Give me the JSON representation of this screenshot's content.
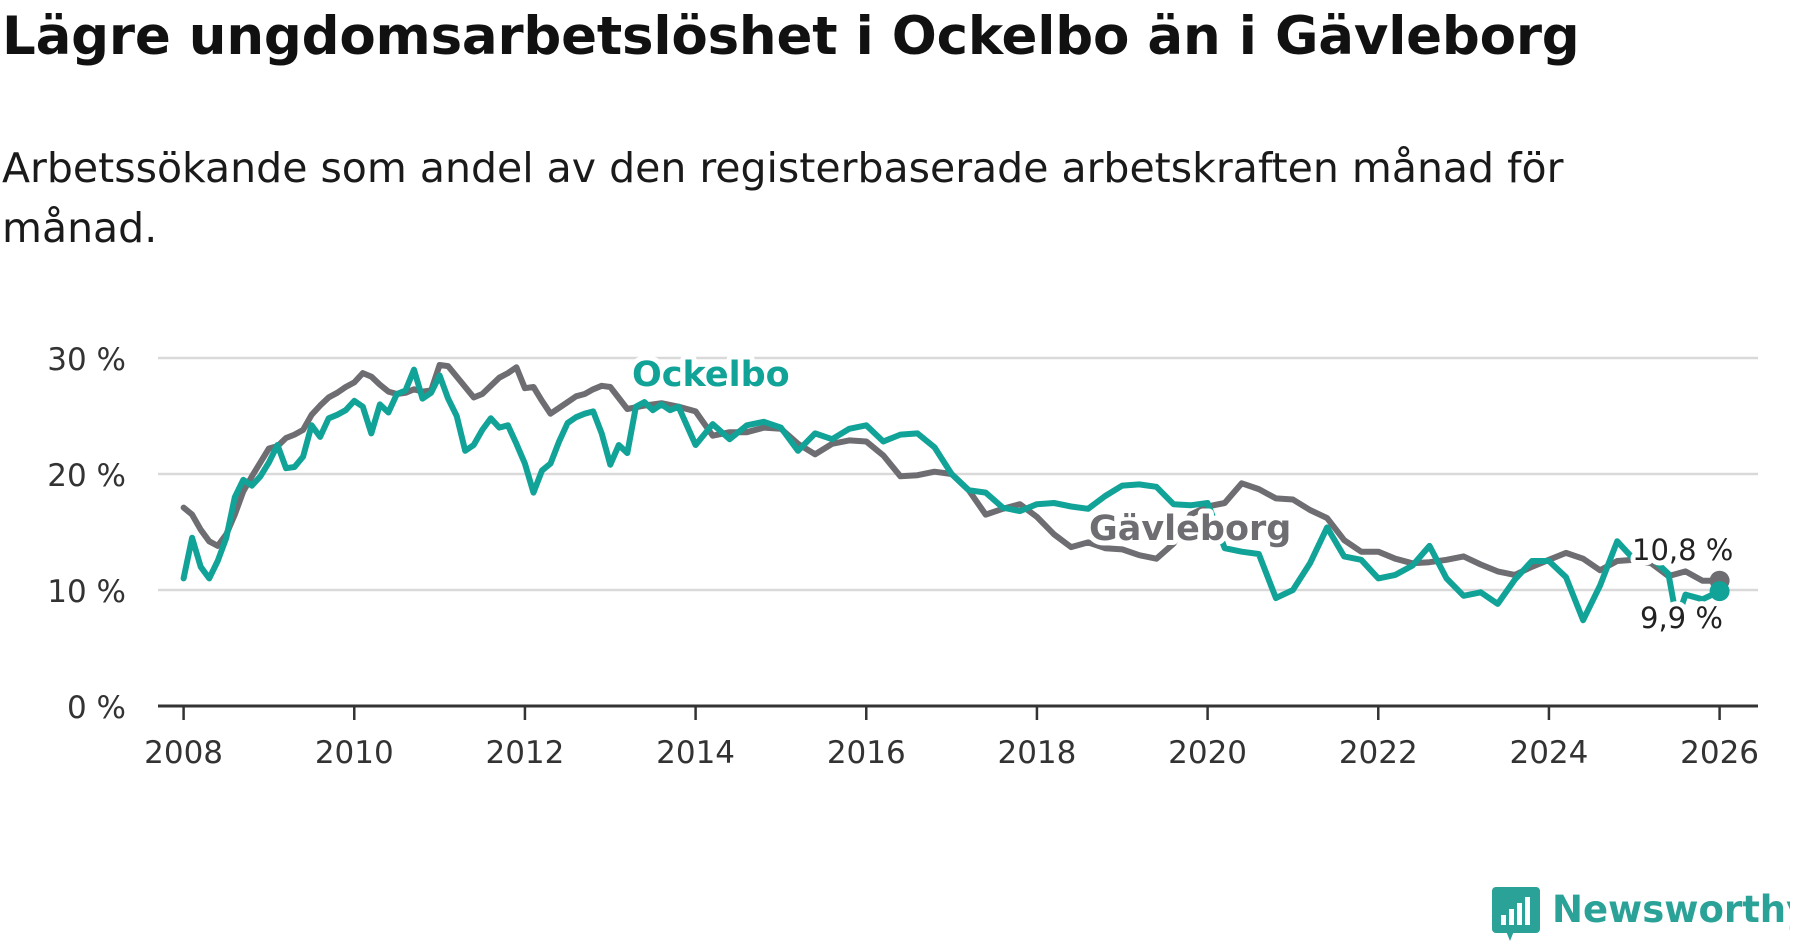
{
  "title": "Lägre ungdomsarbetslöshet i Ockelbo än i Gävleborg",
  "subtitle": "Arbetssökande som andel av den registerbaserade arbetskraften månad för månad.",
  "brand": {
    "name": "Newsworthy",
    "color": "#2aa298"
  },
  "colors": {
    "ockelbo": "#12a398",
    "gavleborg": "#6e6d71",
    "grid": "#d9d9d9",
    "axis": "#333333"
  },
  "chart_data": {
    "type": "line",
    "title": "Lägre ungdomsarbetslöshet i Ockelbo än i Gävleborg",
    "xlabel": "",
    "ylabel": "",
    "xlim": [
      2007.7,
      2026.45
    ],
    "ylim": [
      0,
      30
    ],
    "y_ticks": [
      0,
      10,
      20,
      30
    ],
    "y_tick_labels": [
      "0 %",
      "10 %",
      "20 %",
      "30 %"
    ],
    "x_ticks": [
      2008,
      2010,
      2012,
      2014,
      2016,
      2018,
      2020,
      2022,
      2024,
      2026
    ],
    "x_tick_labels": [
      "2008",
      "2010",
      "2012",
      "2014",
      "2016",
      "2018",
      "2020",
      "2022",
      "2024",
      "2026"
    ],
    "series": [
      {
        "name": "Gävleborg",
        "label": "Gävleborg",
        "end_label": "10,8 %",
        "x": [
          2008.0,
          2008.1,
          2008.2,
          2008.3,
          2008.4,
          2008.5,
          2008.6,
          2008.7,
          2008.8,
          2008.9,
          2009.0,
          2009.1,
          2009.2,
          2009.3,
          2009.4,
          2009.5,
          2009.6,
          2009.7,
          2009.8,
          2009.9,
          2010.0,
          2010.1,
          2010.2,
          2010.3,
          2010.4,
          2010.5,
          2010.6,
          2010.7,
          2010.8,
          2010.9,
          2011.0,
          2011.1,
          2011.2,
          2011.3,
          2011.4,
          2011.5,
          2011.6,
          2011.7,
          2011.8,
          2011.9,
          2012.0,
          2012.1,
          2012.2,
          2012.3,
          2012.4,
          2012.5,
          2012.6,
          2012.7,
          2012.8,
          2012.9,
          2013.0,
          2013.2,
          2013.4,
          2013.6,
          2013.8,
          2014.0,
          2014.2,
          2014.4,
          2014.6,
          2014.8,
          2015.0,
          2015.2,
          2015.4,
          2015.6,
          2015.8,
          2016.0,
          2016.2,
          2016.4,
          2016.6,
          2016.8,
          2017.0,
          2017.2,
          2017.4,
          2017.6,
          2017.8,
          2018.0,
          2018.2,
          2018.4,
          2018.6,
          2018.8,
          2019.0,
          2019.2,
          2019.4,
          2019.6,
          2019.8,
          2020.0,
          2020.2,
          2020.4,
          2020.6,
          2020.8,
          2021.0,
          2021.2,
          2021.4,
          2021.6,
          2021.8,
          2022.0,
          2022.2,
          2022.4,
          2022.6,
          2022.8,
          2023.0,
          2023.2,
          2023.4,
          2023.6,
          2023.8,
          2024.0,
          2024.2,
          2024.4,
          2024.6,
          2024.8,
          2025.0,
          2025.2,
          2025.4,
          2025.6,
          2025.8,
          2026.0
        ],
        "values": [
          17.1,
          16.5,
          15.2,
          14.2,
          13.8,
          14.8,
          16.5,
          18.5,
          19.8,
          21.0,
          22.2,
          22.4,
          23.1,
          23.4,
          23.8,
          25.1,
          25.9,
          26.6,
          27.0,
          27.5,
          27.9,
          28.7,
          28.4,
          27.7,
          27.1,
          26.9,
          27.0,
          27.3,
          27.1,
          27.2,
          29.4,
          29.3,
          28.4,
          27.5,
          26.6,
          26.9,
          27.6,
          28.3,
          28.7,
          29.2,
          27.4,
          27.5,
          26.3,
          25.2,
          25.7,
          26.2,
          26.7,
          26.9,
          27.3,
          27.6,
          27.5,
          25.6,
          25.9,
          26.1,
          25.8,
          25.4,
          23.3,
          23.6,
          23.6,
          24.0,
          23.9,
          22.6,
          21.7,
          22.6,
          22.9,
          22.8,
          21.6,
          19.8,
          19.9,
          20.2,
          20.0,
          18.6,
          16.5,
          17.0,
          17.4,
          16.3,
          14.8,
          13.7,
          14.1,
          13.6,
          13.5,
          13.0,
          12.7,
          14.0,
          16.5,
          17.2,
          17.5,
          19.2,
          18.7,
          17.9,
          17.8,
          16.9,
          16.2,
          14.3,
          13.3,
          13.3,
          12.7,
          12.3,
          12.4,
          12.6,
          12.9,
          12.2,
          11.6,
          11.3,
          12.0,
          12.6,
          13.2,
          12.7,
          11.7,
          12.5,
          12.6,
          12.3,
          11.2,
          11.6,
          10.8,
          10.8
        ]
      },
      {
        "name": "Ockelbo",
        "label": "Ockelbo",
        "end_label": "9,9 %",
        "x": [
          2008.0,
          2008.1,
          2008.2,
          2008.3,
          2008.4,
          2008.5,
          2008.6,
          2008.7,
          2008.8,
          2008.9,
          2009.0,
          2009.1,
          2009.2,
          2009.3,
          2009.4,
          2009.5,
          2009.6,
          2009.7,
          2009.8,
          2009.9,
          2010.0,
          2010.1,
          2010.2,
          2010.3,
          2010.4,
          2010.5,
          2010.6,
          2010.7,
          2010.8,
          2010.9,
          2011.0,
          2011.1,
          2011.2,
          2011.3,
          2011.4,
          2011.5,
          2011.6,
          2011.7,
          2011.8,
          2011.9,
          2012.0,
          2012.1,
          2012.2,
          2012.3,
          2012.4,
          2012.5,
          2012.6,
          2012.7,
          2012.8,
          2012.9,
          2013.0,
          2013.1,
          2013.2,
          2013.3,
          2013.4,
          2013.5,
          2013.6,
          2013.7,
          2013.8,
          2014.0,
          2014.2,
          2014.4,
          2014.6,
          2014.8,
          2015.0,
          2015.2,
          2015.4,
          2015.6,
          2015.8,
          2016.0,
          2016.2,
          2016.4,
          2016.6,
          2016.8,
          2017.0,
          2017.2,
          2017.4,
          2017.6,
          2017.8,
          2018.0,
          2018.2,
          2018.4,
          2018.6,
          2018.8,
          2019.0,
          2019.2,
          2019.4,
          2019.6,
          2019.8,
          2020.0,
          2020.2,
          2020.4,
          2020.6,
          2020.8,
          2021.0,
          2021.2,
          2021.4,
          2021.6,
          2021.8,
          2022.0,
          2022.2,
          2022.4,
          2022.6,
          2022.8,
          2023.0,
          2023.2,
          2023.4,
          2023.6,
          2023.8,
          2024.0,
          2024.2,
          2024.4,
          2024.6,
          2024.8,
          2025.0,
          2025.2,
          2025.4,
          2025.5,
          2025.6,
          2025.8,
          2026.0
        ],
        "values": [
          11.0,
          14.5,
          12.0,
          11.0,
          12.5,
          14.5,
          18.0,
          19.5,
          19.0,
          19.8,
          21.0,
          22.5,
          20.5,
          20.6,
          21.5,
          24.2,
          23.2,
          24.8,
          25.1,
          25.5,
          26.3,
          25.8,
          23.5,
          26.0,
          25.3,
          26.9,
          27.2,
          29.0,
          26.5,
          27.0,
          28.5,
          26.5,
          25.0,
          22.0,
          22.5,
          23.8,
          24.8,
          24.0,
          24.2,
          22.6,
          20.9,
          18.4,
          20.3,
          20.9,
          22.8,
          24.4,
          24.9,
          25.2,
          25.4,
          23.5,
          20.8,
          22.5,
          21.8,
          25.8,
          26.2,
          25.5,
          26.0,
          25.5,
          25.8,
          22.5,
          24.3,
          23.0,
          24.2,
          24.5,
          24.0,
          22.0,
          23.5,
          23.0,
          23.9,
          24.2,
          22.8,
          23.4,
          23.5,
          22.3,
          20.0,
          18.6,
          18.4,
          17.1,
          16.8,
          17.4,
          17.5,
          17.2,
          17.0,
          18.1,
          19.0,
          19.1,
          18.9,
          17.4,
          17.3,
          17.5,
          13.6,
          13.3,
          13.1,
          9.3,
          10.0,
          12.3,
          15.4,
          12.9,
          12.6,
          11.0,
          11.3,
          12.1,
          13.8,
          11.0,
          9.5,
          9.8,
          8.8,
          10.9,
          12.5,
          12.5,
          11.1,
          7.4,
          10.4,
          14.2,
          12.6,
          12.8,
          11.4,
          7.4,
          9.6,
          9.2,
          9.9
        ]
      }
    ]
  }
}
